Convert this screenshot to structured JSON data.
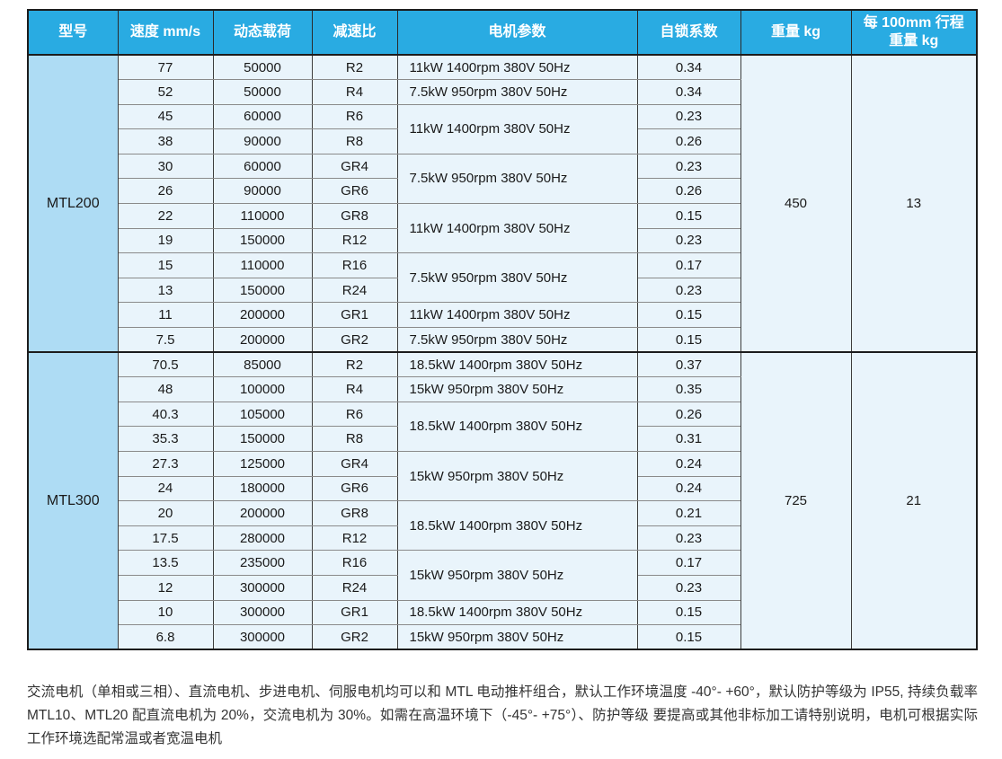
{
  "colors": {
    "header_bg": "#29abe2",
    "header_text": "#ffffff",
    "model_cell_bg": "#aedcf4",
    "data_cell_bg": "#e9f4fb",
    "outer_border": "#1c1c1c"
  },
  "table": {
    "headers": [
      "型号",
      "速度 mm/s",
      "动态载荷",
      "减速比",
      "电机参数",
      "自锁系数",
      "重量 kg",
      "每 100mm 行程\n重量 kg"
    ],
    "groups": [
      {
        "model": "MTL200",
        "weight_kg": "450",
        "weight_per_100mm_kg": "13",
        "rows": [
          {
            "speed": "77",
            "load": "50000",
            "ratio": "R2",
            "lock": "0.34"
          },
          {
            "speed": "52",
            "load": "50000",
            "ratio": "R4",
            "lock": "0.34"
          },
          {
            "speed": "45",
            "load": "60000",
            "ratio": "R6",
            "lock": "0.23"
          },
          {
            "speed": "38",
            "load": "90000",
            "ratio": "R8",
            "lock": "0.26"
          },
          {
            "speed": "30",
            "load": "60000",
            "ratio": "GR4",
            "lock": "0.23"
          },
          {
            "speed": "26",
            "load": "90000",
            "ratio": "GR6",
            "lock": "0.26"
          },
          {
            "speed": "22",
            "load": "110000",
            "ratio": "GR8",
            "lock": "0.15"
          },
          {
            "speed": "19",
            "load": "150000",
            "ratio": "R12",
            "lock": "0.23"
          },
          {
            "speed": "15",
            "load": "110000",
            "ratio": "R16",
            "lock": "0.17"
          },
          {
            "speed": "13",
            "load": "150000",
            "ratio": "R24",
            "lock": "0.23"
          },
          {
            "speed": "11",
            "load": "200000",
            "ratio": "GR1",
            "lock": "0.15"
          },
          {
            "speed": "7.5",
            "load": "200000",
            "ratio": "GR2",
            "lock": "0.15"
          }
        ],
        "motor_cells": [
          {
            "text": "11kW 1400rpm 380V 50Hz",
            "rows": 1
          },
          {
            "text": "7.5kW 950rpm 380V 50Hz",
            "rows": 1
          },
          {
            "text": "11kW 1400rpm 380V 50Hz",
            "rows": 2
          },
          {
            "text": "7.5kW 950rpm 380V 50Hz",
            "rows": 2
          },
          {
            "text": "11kW 1400rpm 380V 50Hz",
            "rows": 2
          },
          {
            "text": "7.5kW 950rpm 380V 50Hz",
            "rows": 2
          },
          {
            "text": "11kW 1400rpm 380V 50Hz",
            "rows": 1
          },
          {
            "text": "7.5kW 950rpm 380V 50Hz",
            "rows": 1
          }
        ]
      },
      {
        "model": "MTL300",
        "weight_kg": "725",
        "weight_per_100mm_kg": "21",
        "rows": [
          {
            "speed": "70.5",
            "load": "85000",
            "ratio": "R2",
            "lock": "0.37"
          },
          {
            "speed": "48",
            "load": "100000",
            "ratio": "R4",
            "lock": "0.35"
          },
          {
            "speed": "40.3",
            "load": "105000",
            "ratio": "R6",
            "lock": "0.26"
          },
          {
            "speed": "35.3",
            "load": "150000",
            "ratio": "R8",
            "lock": "0.31"
          },
          {
            "speed": "27.3",
            "load": "125000",
            "ratio": "GR4",
            "lock": "0.24"
          },
          {
            "speed": "24",
            "load": "180000",
            "ratio": "GR6",
            "lock": "0.24"
          },
          {
            "speed": "20",
            "load": "200000",
            "ratio": "GR8",
            "lock": "0.21"
          },
          {
            "speed": "17.5",
            "load": "280000",
            "ratio": "R12",
            "lock": "0.23"
          },
          {
            "speed": "13.5",
            "load": "235000",
            "ratio": "R16",
            "lock": "0.17"
          },
          {
            "speed": "12",
            "load": "300000",
            "ratio": "R24",
            "lock": "0.23"
          },
          {
            "speed": "10",
            "load": "300000",
            "ratio": "GR1",
            "lock": "0.15"
          },
          {
            "speed": "6.8",
            "load": "300000",
            "ratio": "GR2",
            "lock": "0.15"
          }
        ],
        "motor_cells": [
          {
            "text": "18.5kW 1400rpm 380V 50Hz",
            "rows": 1
          },
          {
            "text": "15kW 950rpm 380V 50Hz",
            "rows": 1
          },
          {
            "text": "18.5kW 1400rpm 380V 50Hz",
            "rows": 2
          },
          {
            "text": "15kW 950rpm 380V 50Hz",
            "rows": 2
          },
          {
            "text": "18.5kW 1400rpm 380V 50Hz",
            "rows": 2
          },
          {
            "text": "15kW 950rpm 380V 50Hz",
            "rows": 2
          },
          {
            "text": "18.5kW 1400rpm 380V 50Hz",
            "rows": 1
          },
          {
            "text": "15kW 950rpm 380V 50Hz",
            "rows": 1
          }
        ]
      }
    ]
  },
  "footnote": "交流电机（单相或三相）、直流电机、步进电机、伺服电机均可以和 MTL 电动推杆组合，默认工作环境温度 -40°- +60°，默认防护等级为 IP55, 持续负载率 MTL10、MTL20 配直流电机为 20%，交流电机为 30%。如需在高温环境下（-45°- +75°）、防护等级 要提高或其他非标加工请特别说明，电机可根据实际工作环境选配常温或者宽温电机"
}
